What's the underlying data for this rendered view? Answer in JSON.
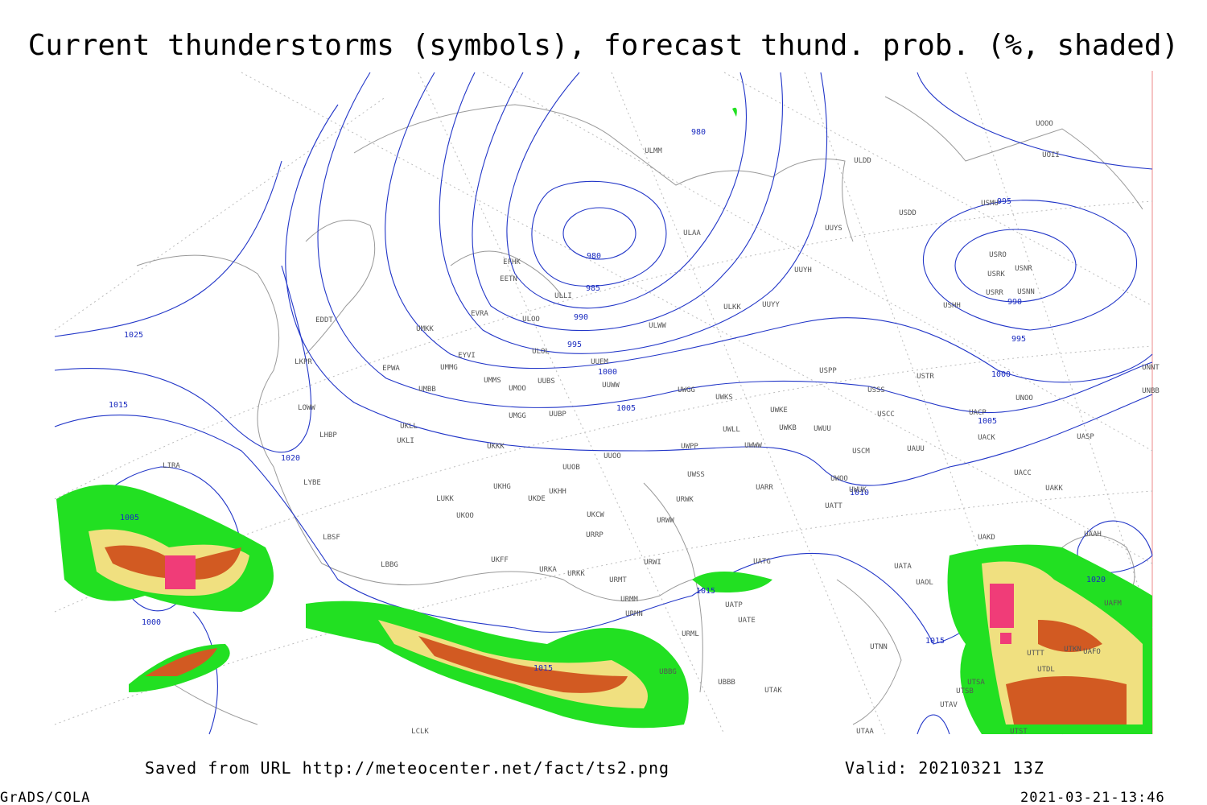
{
  "header": {
    "title": "Current thunderstorms (symbols), forecast thund. prob. (%, shaded)"
  },
  "isobar_labels": [
    980,
    980,
    985,
    990,
    995,
    1000,
    1005,
    1010,
    1015,
    1015,
    1015,
    1020,
    1015,
    1025,
    1005,
    1000,
    995,
    990,
    995,
    1000,
    1005,
    1020
  ],
  "stations": [
    "ULMM",
    "ULDD",
    "UUYS",
    "USDD",
    "USMU",
    "UOII",
    "UOOO",
    "ULAA",
    "UUYH",
    "USRO",
    "USRK",
    "USNR",
    "USRR",
    "USNN",
    "USHH",
    "EFHK",
    "EETN",
    "ULLI",
    "ULKK",
    "UUYY",
    "ULWW",
    "ULOO",
    "EVRA",
    "EDDT",
    "UMKK",
    "ULOL",
    "EYVI",
    "UUEM",
    "EPWA",
    "UMMG",
    "UMMS",
    "UMOO",
    "UUBS",
    "UUWW",
    "USPP",
    "USTR",
    "UNNT",
    "LKPR",
    "UWGG",
    "UWKS",
    "USSS",
    "UNOO",
    "UNBB",
    "UMBB",
    "LOWW",
    "UMGG",
    "UUBP",
    "UWKE",
    "USCC",
    "UACP",
    "UKLL",
    "UKLI",
    "LHBP",
    "UWLL",
    "UWKB",
    "UWUU",
    "UACK",
    "UASP",
    "UKKK",
    "UUOO",
    "UWPP",
    "UWWW",
    "USCM",
    "UAUU",
    "LIRA",
    "UUOB",
    "UWSS",
    "UWOO",
    "UACC",
    "UAKK",
    "LYBE",
    "UKHG",
    "UKHH",
    "UARR",
    "UWUK",
    "UKDE",
    "LUKK",
    "UATT",
    "URWK",
    "UKOO",
    "UKCW",
    "URWW",
    "LBSF",
    "URRP",
    "UAKD",
    "UAAH",
    "UKFF",
    "LBBG",
    "URWI",
    "UATG",
    "UATA",
    "URKA",
    "URKK",
    "UAOL",
    "URMT",
    "UATP",
    "UATE",
    "URMM",
    "URMN",
    "UAFM",
    "URML",
    "UTTT",
    "UTKN",
    "UAFO",
    "UTNN",
    "UTDL",
    "UBBG",
    "UBBB",
    "UTAK",
    "UTSA",
    "UTSB",
    "UTAV",
    "UTST",
    "LCLK",
    "UTAA"
  ],
  "footer": {
    "source": "Saved from URL http://meteocenter.net/fact/ts2.png",
    "valid": "Valid: 20210321 13Z",
    "software": "GrADS/COLA",
    "timestamp": "2021-03-21-13:46"
  }
}
